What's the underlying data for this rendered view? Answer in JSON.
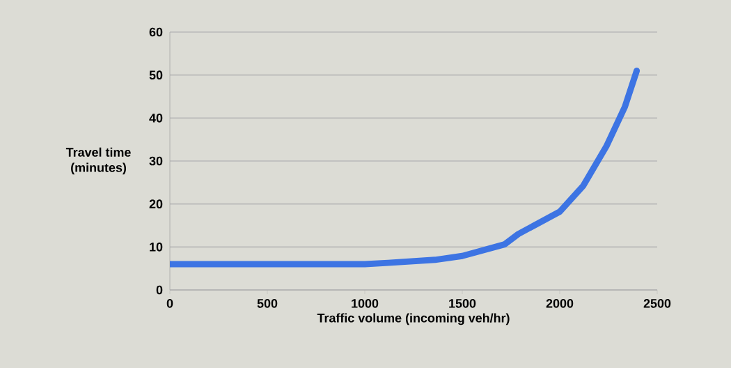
{
  "chart_data": {
    "type": "line",
    "xlabel": "Traffic volume (incoming veh/hr)",
    "ylabel": "Travel time\n(minutes)",
    "x": [
      0,
      500,
      1000,
      1120,
      1360,
      1500,
      1717,
      1787,
      2000,
      2120,
      2239,
      2334,
      2395
    ],
    "series": [
      {
        "color": "#3d74e3",
        "values": [
          6,
          6,
          6,
          6.3,
          7,
          7.9,
          10.6,
          13,
          18.2,
          24.2,
          33.4,
          42.6,
          51
        ]
      }
    ],
    "xlim": [
      0,
      2500
    ],
    "ylim": [
      0,
      60
    ],
    "xticks": [
      0,
      500,
      1000,
      1500,
      2000,
      2500
    ],
    "yticks": [
      0,
      10,
      20,
      30,
      40,
      50,
      60
    ],
    "grid": "y",
    "marker": "none",
    "line_style": "solid"
  }
}
